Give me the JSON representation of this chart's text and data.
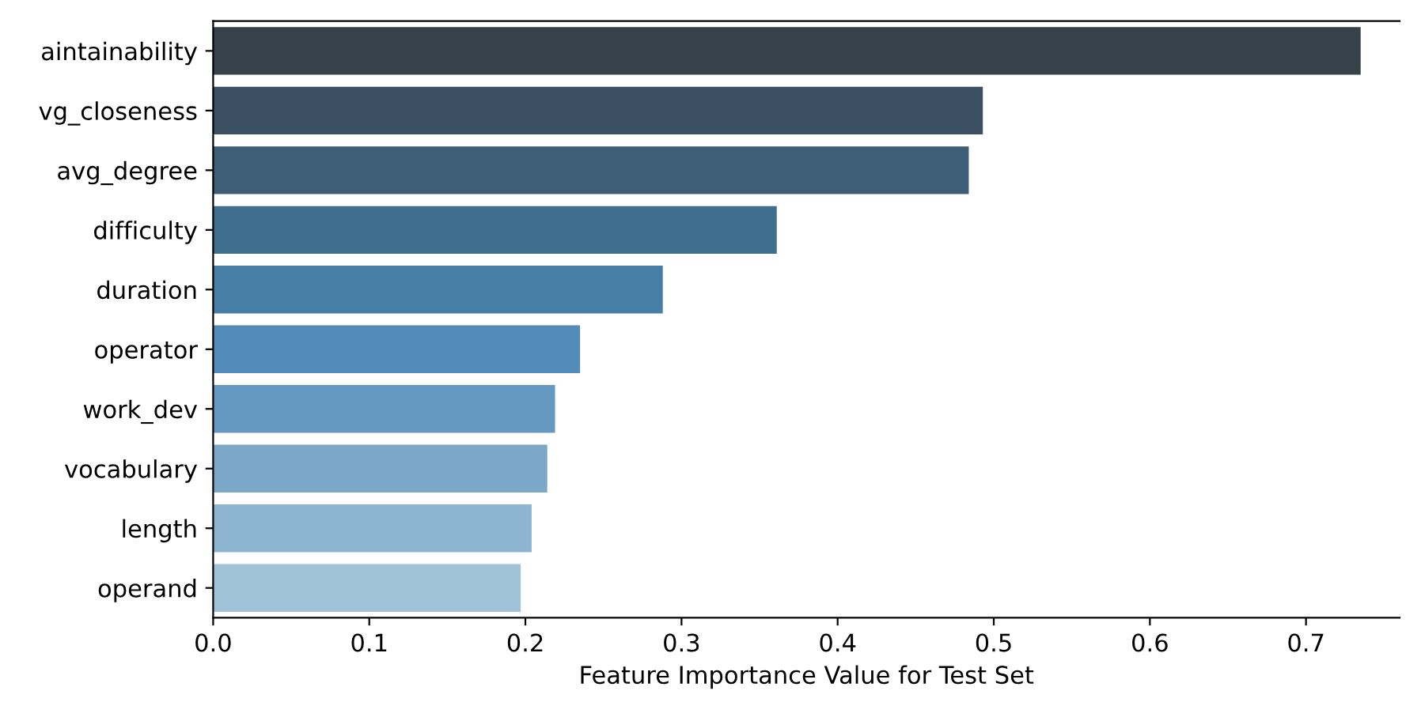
{
  "chart_data": {
    "type": "bar",
    "orientation": "horizontal",
    "xlabel": "Feature Importance Value for Test Set",
    "categories": [
      "aintainability",
      "vg_closeness",
      "avg_degree",
      "difficulty",
      "duration",
      "operator",
      "work_dev",
      "vocabulary",
      "length",
      "operand"
    ],
    "values": [
      0.735,
      0.493,
      0.484,
      0.361,
      0.288,
      0.235,
      0.219,
      0.214,
      0.204,
      0.197
    ],
    "colors": [
      "#364249",
      "#3b5063",
      "#3e5e78",
      "#406e8e",
      "#467ea6",
      "#538cb9",
      "#6699c1",
      "#7ba8c9",
      "#8db4d0",
      "#a0c3d9"
    ],
    "xlim": [
      0,
      0.76
    ],
    "xticks": [
      {
        "value": 0,
        "label": "0.0"
      },
      0.1,
      0.2,
      0.3,
      0.4,
      0.5,
      0.6,
      0.7
    ],
    "grid": false
  }
}
